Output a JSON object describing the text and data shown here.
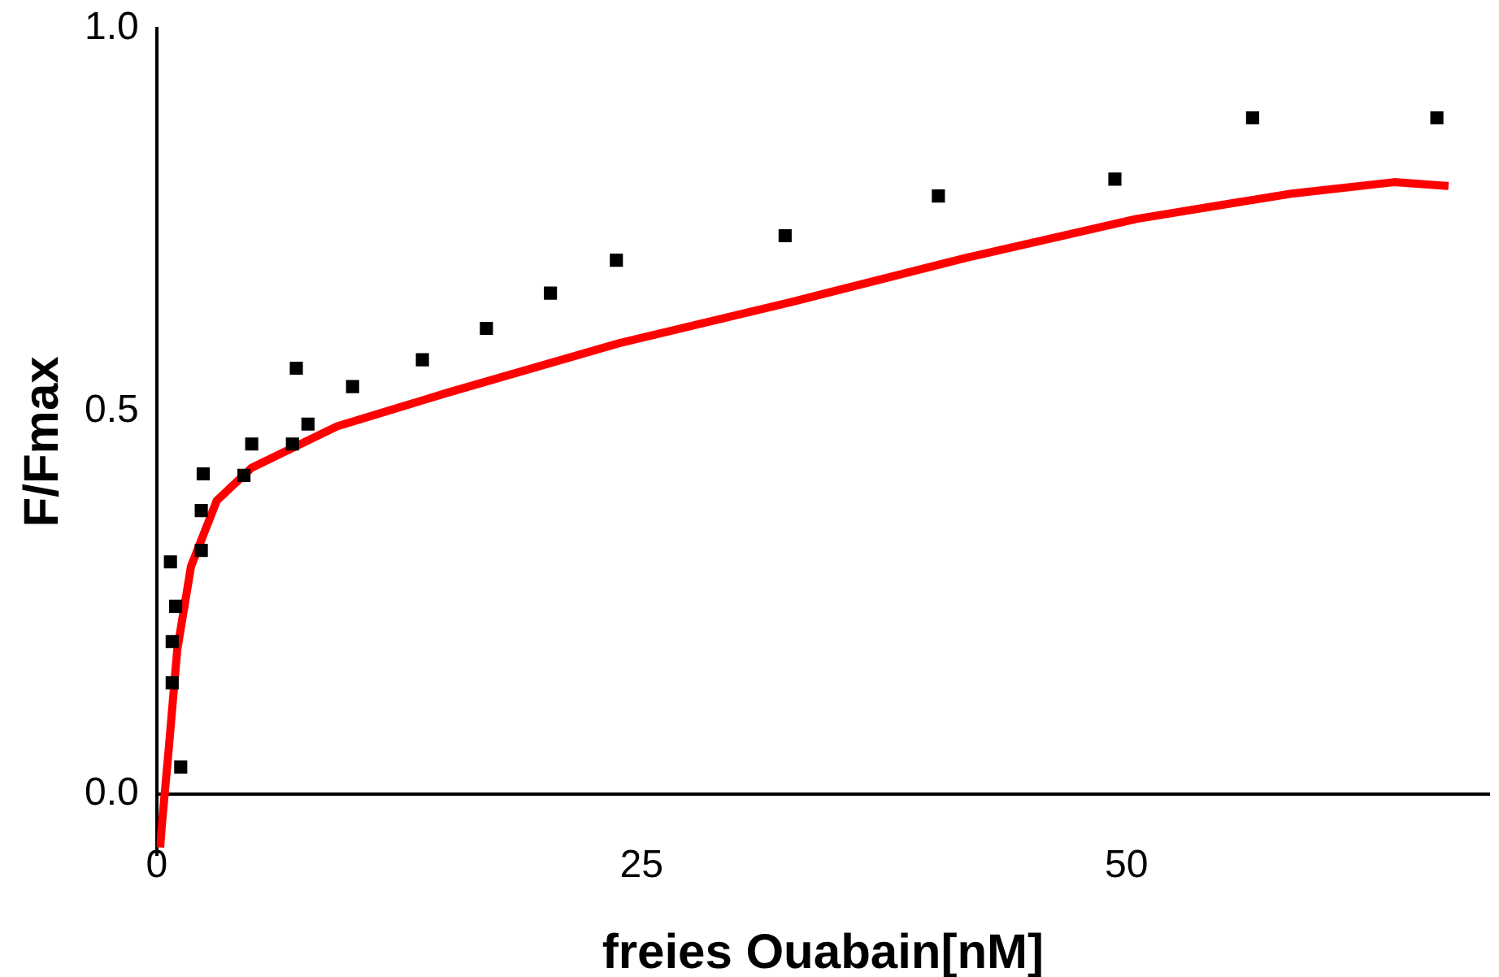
{
  "chart_data": {
    "type": "scatter",
    "xlabel": "freies Ouabain[nM]",
    "ylabel": "F/Fmax",
    "xlim": [
      0,
      68.7
    ],
    "ylim": [
      -0.08,
      1.0
    ],
    "xticks": [
      0,
      25,
      50
    ],
    "yticks": [
      {
        "value": 0,
        "label": "0.0"
      },
      0.5,
      {
        "value": 1,
        "label": "1.0"
      }
    ],
    "grid": false,
    "legend": false,
    "marker": "square",
    "series": [
      {
        "type": "scatter",
        "color": "#000000",
        "x": [
          0.71,
          0.8,
          0.98,
          0.8,
          1.24,
          2.3,
          2.4,
          2.3,
          4.5,
          4.9,
          7.0,
          7.2,
          7.8,
          10.1,
          13.7,
          17.0,
          20.3,
          23.7,
          32.4,
          40.3,
          49.4,
          56.5,
          66.0
        ],
        "values": [
          0.303,
          0.199,
          0.245,
          0.145,
          0.035,
          0.37,
          0.418,
          0.318,
          0.416,
          0.457,
          0.457,
          0.556,
          0.483,
          0.532,
          0.567,
          0.608,
          0.654,
          0.697,
          0.729,
          0.781,
          0.803,
          0.883,
          0.883
        ]
      },
      {
        "type": "line",
        "color": "#ff0000",
        "marker": "none",
        "x": [
          0.18,
          0.27,
          0.62,
          1.06,
          1.77,
          3.1,
          4.9,
          9.3,
          15.0,
          23.9,
          32.8,
          41.7,
          50.5,
          58.5,
          63.8,
          66.6
        ],
        "values": [
          -0.07,
          -0.04,
          0.058,
          0.188,
          0.297,
          0.383,
          0.426,
          0.48,
          0.524,
          0.589,
          0.643,
          0.7,
          0.751,
          0.784,
          0.799,
          0.794
        ]
      }
    ]
  }
}
